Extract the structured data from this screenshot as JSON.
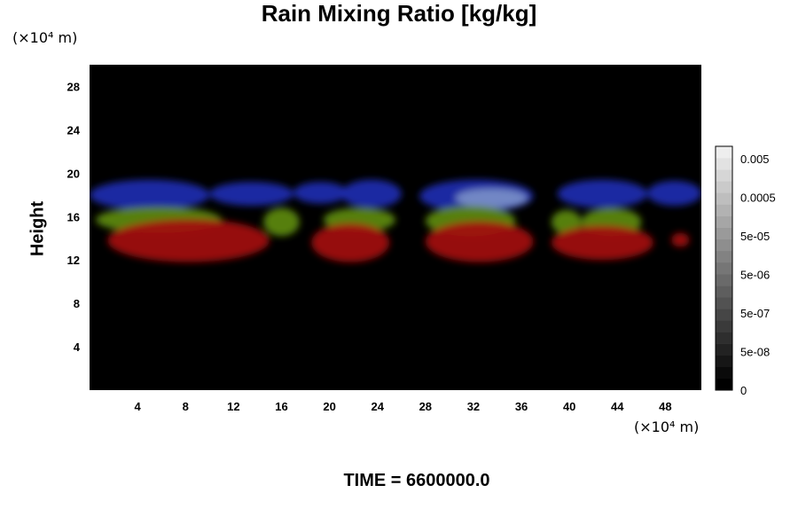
{
  "chart_data": {
    "type": "heatmap",
    "title": "Rain Mixing Ratio [kg/kg]",
    "xlabel": "",
    "ylabel": "Height",
    "x_unit": "(×10⁴ m)",
    "y_unit": "(×10⁴ m)",
    "xlim": [
      0,
      51
    ],
    "ylim": [
      0,
      30
    ],
    "x_ticks": [
      4,
      8,
      12,
      16,
      20,
      24,
      28,
      32,
      36,
      40,
      44,
      48
    ],
    "y_ticks": [
      4,
      8,
      12,
      16,
      20,
      24,
      28
    ],
    "background": "#000000",
    "colorbar": {
      "tick_labels": [
        "0.005",
        "0.0005",
        "5e-05",
        "5e-06",
        "5e-07",
        "5e-08",
        "0"
      ],
      "colors": [
        "#000000",
        "#0a0a0a",
        "#161616",
        "#222222",
        "#2e2e2e",
        "#3a3a3a",
        "#464646",
        "#525252",
        "#5e5e5e",
        "#6a6a6a",
        "#767676",
        "#828282",
        "#8e8e8e",
        "#9a9a9a",
        "#a6a6a6",
        "#b2b2b2",
        "#bebebe",
        "#cacaca",
        "#d6d6d6",
        "#e2e2e2",
        "#eeeeee"
      ]
    },
    "layers": [
      {
        "color": "#1d2bb0",
        "blobs": [
          {
            "x0": 0,
            "x1": 10,
            "y0": 16.6,
            "y1": 19.4
          },
          {
            "x0": 10,
            "x1": 17,
            "y0": 17.0,
            "y1": 19.2
          },
          {
            "x0": 17,
            "x1": 21.5,
            "y0": 17.2,
            "y1": 19.2
          },
          {
            "x0": 21,
            "x1": 26,
            "y0": 16.8,
            "y1": 19.4
          },
          {
            "x0": 27.5,
            "x1": 37,
            "y0": 16.4,
            "y1": 19.4
          },
          {
            "x0": 39,
            "x1": 46.5,
            "y0": 16.8,
            "y1": 19.4
          },
          {
            "x0": 46.5,
            "x1": 51,
            "y0": 17.0,
            "y1": 19.3
          }
        ]
      },
      {
        "color": "#7a8fc8",
        "blobs": [
          {
            "x0": 30.5,
            "x1": 36.5,
            "y0": 16.8,
            "y1": 18.6
          }
        ]
      },
      {
        "color": "#5d8a12",
        "blobs": [
          {
            "x0": 0.5,
            "x1": 11,
            "y0": 14.5,
            "y1": 16.9
          },
          {
            "x0": 14.5,
            "x1": 17.5,
            "y0": 14.2,
            "y1": 16.8
          },
          {
            "x0": 19.5,
            "x1": 25.5,
            "y0": 14.6,
            "y1": 16.8
          },
          {
            "x0": 28,
            "x1": 35.5,
            "y0": 14.2,
            "y1": 17.0
          },
          {
            "x0": 38.5,
            "x1": 41,
            "y0": 14.4,
            "y1": 16.6
          },
          {
            "x0": 41,
            "x1": 46,
            "y0": 14.2,
            "y1": 16.8
          }
        ]
      },
      {
        "color": "#a31010",
        "blobs": [
          {
            "x0": 1.5,
            "x1": 15,
            "y0": 11.8,
            "y1": 15.8
          },
          {
            "x0": 18.5,
            "x1": 25,
            "y0": 11.8,
            "y1": 15.4
          },
          {
            "x0": 28,
            "x1": 37,
            "y0": 11.8,
            "y1": 15.6
          },
          {
            "x0": 38.5,
            "x1": 47,
            "y0": 12.0,
            "y1": 15.2
          },
          {
            "x0": 48.5,
            "x1": 50,
            "y0": 13.2,
            "y1": 14.5
          }
        ]
      }
    ]
  },
  "time_label": "TIME = 6600000.0"
}
